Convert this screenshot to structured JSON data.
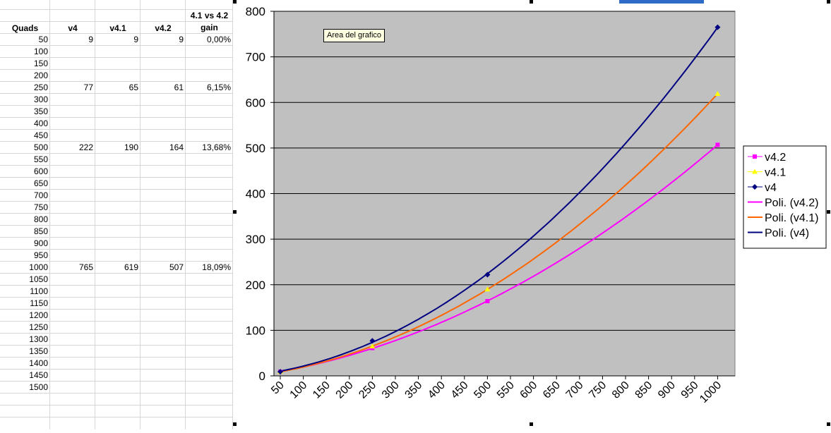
{
  "sheet": {
    "headers": {
      "quads": "Quads",
      "v4": "v4",
      "v41": "v4.1",
      "v42": "v4.2",
      "gain_line1": "4.1 vs 4.2",
      "gain_line2": "gain"
    },
    "rows": [
      {
        "quads": "50",
        "v4": "9",
        "v41": "9",
        "v42": "9",
        "gain": "0,00%"
      },
      {
        "quads": "100"
      },
      {
        "quads": "150"
      },
      {
        "quads": "200"
      },
      {
        "quads": "250",
        "v4": "77",
        "v41": "65",
        "v42": "61",
        "gain": "6,15%"
      },
      {
        "quads": "300"
      },
      {
        "quads": "350"
      },
      {
        "quads": "400"
      },
      {
        "quads": "450"
      },
      {
        "quads": "500",
        "v4": "222",
        "v41": "190",
        "v42": "164",
        "gain": "13,68%"
      },
      {
        "quads": "550"
      },
      {
        "quads": "600"
      },
      {
        "quads": "650"
      },
      {
        "quads": "700"
      },
      {
        "quads": "750"
      },
      {
        "quads": "800"
      },
      {
        "quads": "850"
      },
      {
        "quads": "900"
      },
      {
        "quads": "950"
      },
      {
        "quads": "1000",
        "v4": "765",
        "v41": "619",
        "v42": "507",
        "gain": "18,09%"
      },
      {
        "quads": "1050"
      },
      {
        "quads": "1100"
      },
      {
        "quads": "1150"
      },
      {
        "quads": "1200"
      },
      {
        "quads": "1250"
      },
      {
        "quads": "1300"
      },
      {
        "quads": "1350"
      },
      {
        "quads": "1400"
      },
      {
        "quads": "1450"
      },
      {
        "quads": "1500"
      }
    ]
  },
  "tooltip": "Area del grafico",
  "chart_data": {
    "type": "line",
    "categories": [
      "50",
      "100",
      "150",
      "200",
      "250",
      "300",
      "350",
      "400",
      "450",
      "500",
      "550",
      "600",
      "650",
      "700",
      "750",
      "800",
      "850",
      "900",
      "950",
      "1000"
    ],
    "x_values": [
      50,
      250,
      500,
      1000
    ],
    "ylim": [
      0,
      800
    ],
    "yticks": [
      0,
      100,
      200,
      300,
      400,
      500,
      600,
      700,
      800
    ],
    "grid": true,
    "legend_position": "right",
    "series": [
      {
        "name": "v4.2",
        "values": [
          9,
          61,
          164,
          507
        ],
        "color": "#ff00ff",
        "marker": "square"
      },
      {
        "name": "v4.1",
        "values": [
          9,
          65,
          190,
          619
        ],
        "color": "#ffff00",
        "marker": "triangle"
      },
      {
        "name": "v4",
        "values": [
          9,
          77,
          222,
          765
        ],
        "color": "#000080",
        "marker": "diamond"
      }
    ],
    "trendlines": [
      {
        "name": "Poli. (v4.2)",
        "of": "v4.2",
        "color": "#ff00ff"
      },
      {
        "name": "Poli. (v4.1)",
        "of": "v4.1",
        "color": "#ff6600"
      },
      {
        "name": "Poli. (v4)",
        "of": "v4",
        "color": "#000080"
      }
    ],
    "plot_background": "#c0c0c0"
  }
}
